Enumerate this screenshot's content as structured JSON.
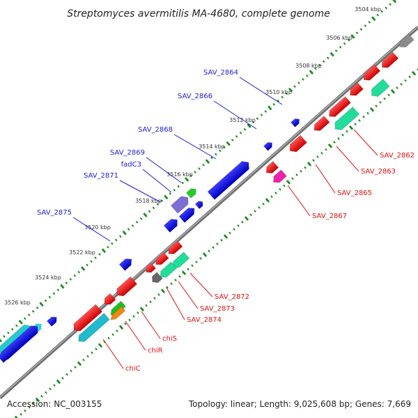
{
  "title": "Streptomyces avermitilis MA-4680, complete genome",
  "footer": {
    "accession": "Accession: NC_003155",
    "topology": "Topology: linear; Length: 9,025,608 bp; Genes: 7,669"
  },
  "colors": {
    "backbone": "#8c8c8c",
    "tick": "#1e8a1e",
    "label_forward": "#1b1bd6",
    "label_reverse": "#dd1111",
    "callout_forward": "#1b1bd6",
    "callout_reverse": "#dd1111"
  },
  "scale_labels": [
    "3504 kbp",
    "3506 kbp",
    "3508 kbp",
    "3510 kbp",
    "3512 kbp",
    "3514 kbp",
    "3516 kbp",
    "3518 kbp",
    "3520 kbp",
    "3522 kbp",
    "3524 kbp",
    "3526 kbp"
  ],
  "forward_labels": [
    "SAV_2864",
    "SAV_2866",
    "SAV_2868",
    "SAV_2869",
    "fadC3",
    "SAV_2871",
    "SAV_2875"
  ],
  "reverse_labels": [
    "SAV_2862",
    "SAV_2863",
    "SAV_2865",
    "SAV_2867",
    "SAV_2872",
    "SAV_2873",
    "SAV_2874",
    "chiS",
    "chiR",
    "chiC"
  ]
}
